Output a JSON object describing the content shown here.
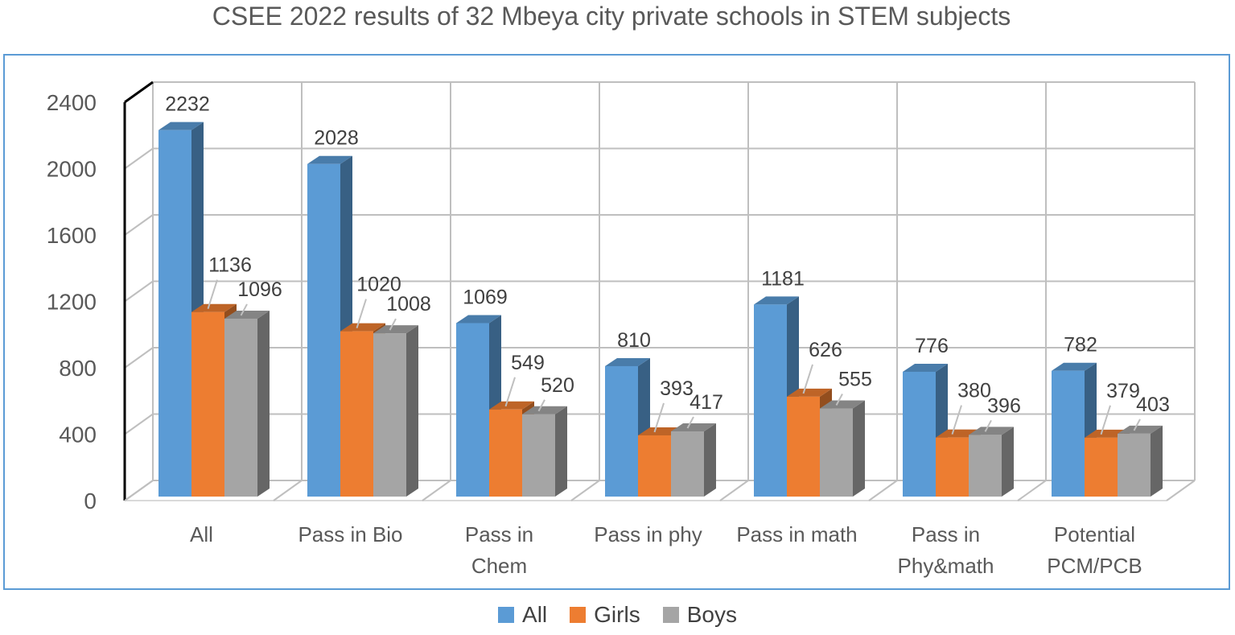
{
  "chart_data": {
    "type": "bar",
    "title": "CSEE 2022 results of 32 Mbeya city private schools in STEM subjects",
    "categories": [
      [
        "All"
      ],
      [
        "Pass in Bio"
      ],
      [
        "Pass in",
        "Chem"
      ],
      [
        "Pass in phy"
      ],
      [
        "Pass in math"
      ],
      [
        "Pass in",
        "Phy&math"
      ],
      [
        "Potential",
        "PCM/PCB"
      ]
    ],
    "series": [
      {
        "name": "All",
        "color": "#5b9bd5",
        "values": [
          2232,
          2028,
          1069,
          810,
          1181,
          776,
          782
        ]
      },
      {
        "name": "Girls",
        "color": "#ed7d31",
        "values": [
          1136,
          1020,
          549,
          393,
          626,
          380,
          379
        ]
      },
      {
        "name": "Boys",
        "color": "#a5a5a5",
        "values": [
          1096,
          1008,
          520,
          417,
          555,
          396,
          403
        ]
      }
    ],
    "ylim": [
      0,
      2400
    ],
    "yticks": [
      0,
      400,
      800,
      1200,
      1600,
      2000,
      2400
    ],
    "grid": true,
    "legend_position": "bottom",
    "style": "3d-clustered-column"
  }
}
